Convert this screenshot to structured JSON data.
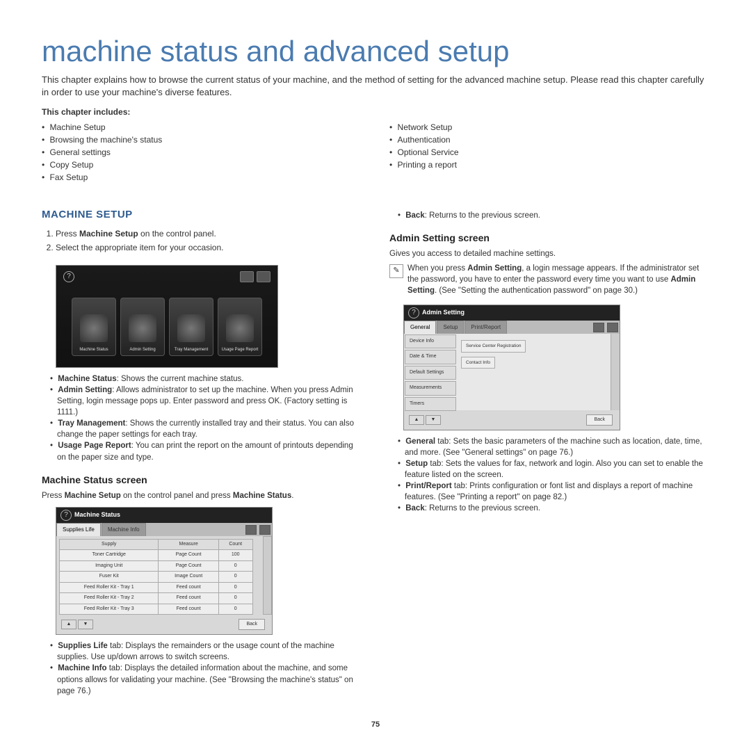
{
  "title": "machine status and advanced setup",
  "intro": "This chapter explains how to browse the current status of your machine, and the method of setting for the advanced machine setup. Please read this chapter carefully in order to use your machine's diverse features.",
  "includes_label": "This chapter includes:",
  "includes_left": [
    "Machine Setup",
    "Browsing the machine's status",
    "General settings",
    "Copy Setup",
    "Fax Setup"
  ],
  "includes_right": [
    "Network Setup",
    "Authentication",
    "Optional Service",
    "Printing a report"
  ],
  "machine_setup": {
    "heading": "MACHINE SETUP",
    "steps_prefix1": "Press ",
    "steps_bold1": "Machine Setup",
    "steps_suffix1": " on the control panel.",
    "step2": "Select the appropriate item for your occasion.",
    "tiles": [
      "Machine Status",
      "Admin Setting",
      "Tray Management",
      "Usage Page Report"
    ],
    "desc": [
      {
        "b": "Machine Status",
        "t": ": Shows the current machine status."
      },
      {
        "b": "Admin Setting",
        "t": ": Allows administrator to set up the machine. When you press Admin Setting, login message pops up. Enter password and press OK. (Factory setting is 1111.)"
      },
      {
        "b": "Tray Management",
        "t": ": Shows the currently installed tray and their status. You can also change the paper settings for each tray."
      },
      {
        "b": "Usage Page Report",
        "t": ": You can print the report on the amount of printouts depending on the paper size and type."
      }
    ]
  },
  "status_screen": {
    "heading": "Machine Status screen",
    "press_prefix": "Press ",
    "press_b1": "Machine Setup",
    "press_mid": " on the control panel and press ",
    "press_b2": "Machine Status",
    "press_suffix": ".",
    "title": "Machine Status",
    "tabs": [
      "Supplies Life",
      "Machine Info"
    ],
    "headers": [
      "Supply",
      "Measure",
      "Count"
    ],
    "rows": [
      [
        "Toner Cartridge",
        "Page Count",
        "100"
      ],
      [
        "Imaging Unit",
        "Page Count",
        "0"
      ],
      [
        "Fuser Kit",
        "Image Count",
        "0"
      ],
      [
        "Feed Roller Kit - Tray 1",
        "Feed count",
        "0"
      ],
      [
        "Feed Roller Kit - Tray 2",
        "Feed count",
        "0"
      ],
      [
        "Feed Roller Kit - Tray 3",
        "Feed count",
        "0"
      ]
    ],
    "back": "Back",
    "desc": [
      {
        "b": "Supplies Life",
        "t": " tab: Displays the remainders or the usage count of the machine supplies. Use up/down arrows to switch screens."
      },
      {
        "b": "Machine Info",
        "t": " tab: Displays the detailed information about the machine, and some options allows for validating your machine. (See \"Browsing the machine's status\" on page 76.)"
      }
    ]
  },
  "right_top_back_b": "Back",
  "right_top_back_t": ": Returns to the previous screen.",
  "admin": {
    "heading": "Admin Setting screen",
    "lead": "Gives you access to detailed machine settings.",
    "note_prefix": "When you press ",
    "note_b1": "Admin Setting",
    "note_mid": ", a login message appears. If the administrator set the password, you have to enter the password every time you want to use ",
    "note_b2": "Admin Setting",
    "note_suffix": ". (See \"Setting the authentication password\" on page 30.)",
    "title": "Admin Setting",
    "top_tabs": [
      "General",
      "Setup",
      "Print/Report"
    ],
    "side_tabs": [
      "Device Info",
      "Date & Time",
      "Default Settings",
      "Measurements",
      "Timers"
    ],
    "popup1": "Service Center Registration",
    "popup2": "Contact Info",
    "back": "Back",
    "desc": [
      {
        "b": "General",
        "t": " tab: Sets the basic parameters of the machine such as location, date, time, and more. (See \"General settings\" on page 76.)"
      },
      {
        "b": "Setup",
        "t": " tab: Sets the values for fax, network and login. Also you can set to enable the feature listed on the screen."
      },
      {
        "b": "Print/Report",
        "t": " tab: Prints configuration or font list and displays a report of machine features. (See \"Printing a report\" on page 82.)"
      },
      {
        "b": "Back",
        "t": ": Returns to the previous screen."
      }
    ]
  },
  "page_number": "75"
}
